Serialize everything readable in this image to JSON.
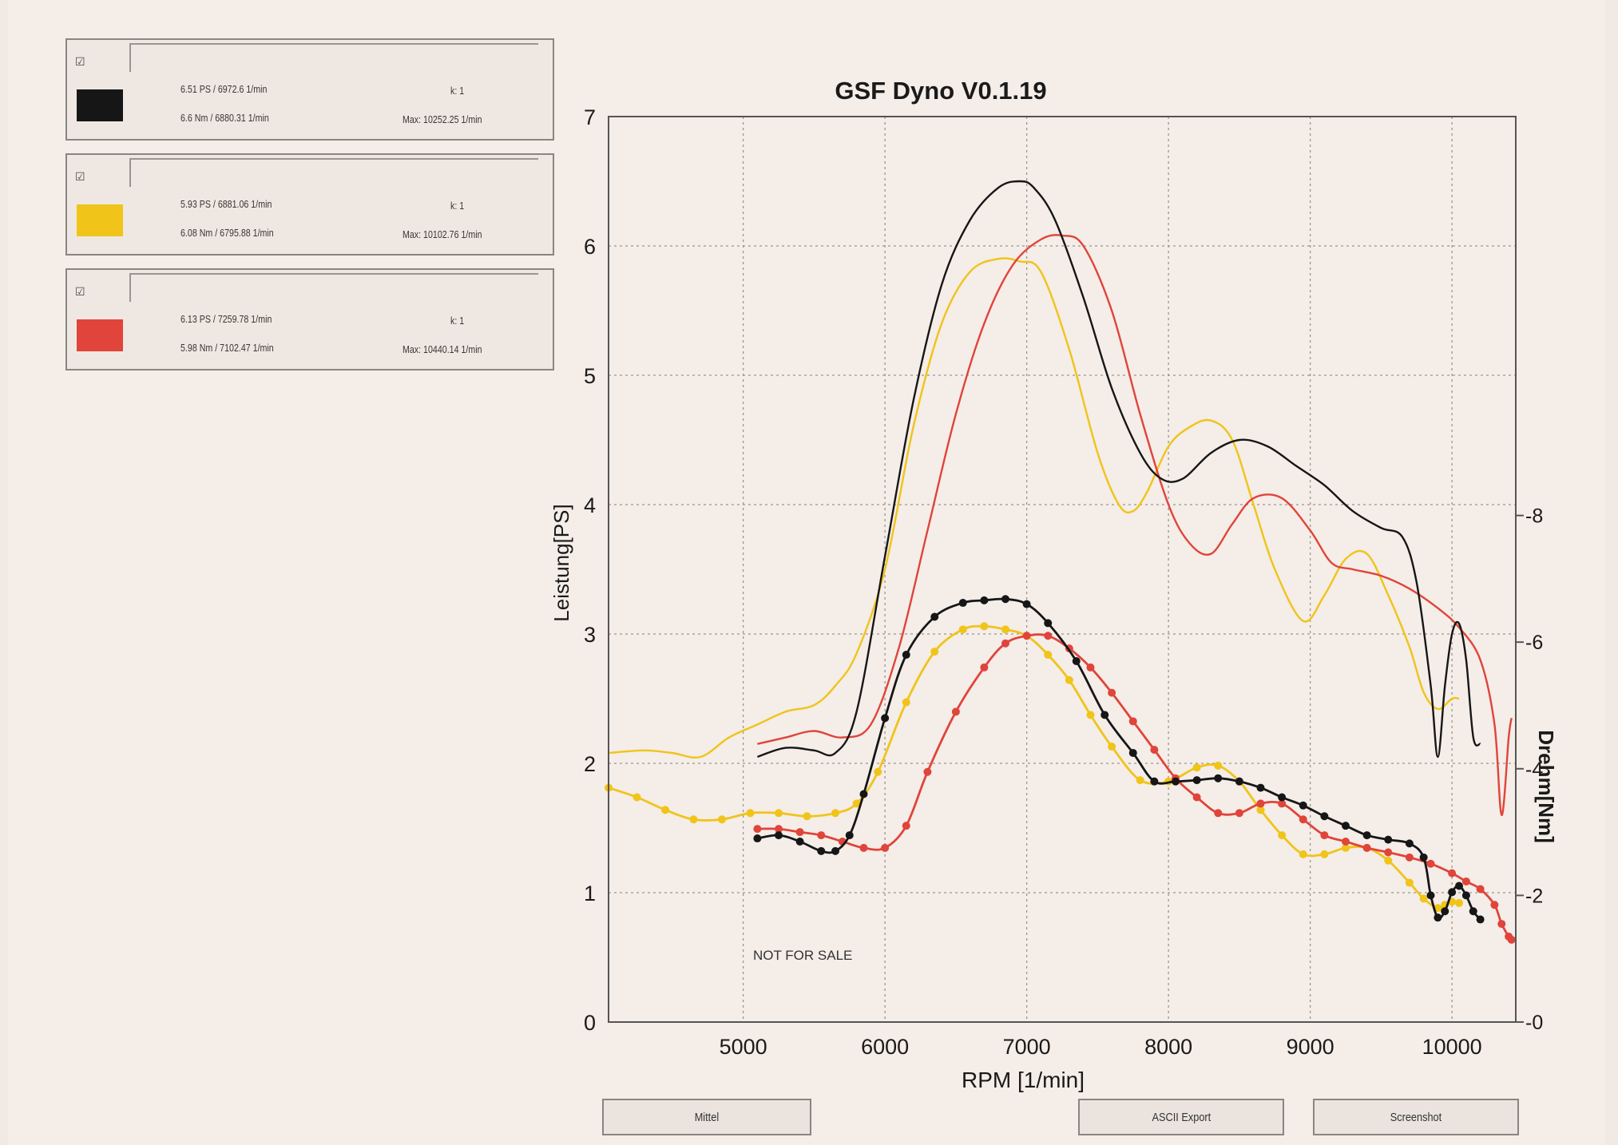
{
  "legend": [
    {
      "color": "#161616",
      "ps": "6.51 PS / 6972.6 1/min",
      "nm": "6.6 Nm / 6880.31 1/min",
      "k": "k: 1",
      "max": "Max: 10252.25 1/min"
    },
    {
      "color": "#f0c419",
      "ps": "5.93 PS / 6881.06 1/min",
      "nm": "6.08 Nm / 6795.88 1/min",
      "k": "k: 1",
      "max": "Max: 10102.76 1/min"
    },
    {
      "color": "#e0443a",
      "ps": "6.13 PS / 7259.78 1/min",
      "nm": "5.98 Nm / 7102.47 1/min",
      "k": "k: 1",
      "max": "Max: 10440.14 1/min"
    }
  ],
  "buttons": {
    "mittel": "Mittel",
    "ascii": "ASCII Export",
    "screenshot": "Screenshot"
  },
  "chart_data": {
    "type": "line",
    "title": "GSF Dyno V0.1.19",
    "xlabel": "RPM [1/min]",
    "ylabel": "Leistung[PS]",
    "y2label": "Drehm[Nm]",
    "annotation": "NOT FOR SALE",
    "xlim": [
      4050,
      10450
    ],
    "ylim": [
      0,
      7
    ],
    "y2lim": [
      0,
      14.3
    ],
    "xticks": [
      5000,
      6000,
      7000,
      8000,
      9000,
      10000
    ],
    "yticks": [
      0,
      1,
      2,
      3,
      4,
      5,
      6,
      7
    ],
    "y2ticks": [
      0,
      2,
      4,
      6,
      8
    ],
    "grid": true,
    "series": [
      {
        "color": "#161616",
        "axis": "power",
        "x": [
          5100,
          5300,
          5500,
          5650,
          5800,
          6000,
          6200,
          6400,
          6600,
          6800,
          6950,
          7050,
          7200,
          7400,
          7600,
          7800,
          7950,
          8100,
          8300,
          8500,
          8700,
          8900,
          9100,
          9300,
          9500,
          9650,
          9750,
          9850,
          9900,
          9950,
          10000,
          10050,
          10100,
          10150,
          10200
        ],
        "y": [
          2.05,
          2.12,
          2.1,
          2.08,
          2.4,
          3.6,
          4.8,
          5.7,
          6.2,
          6.45,
          6.5,
          6.45,
          6.2,
          5.6,
          4.9,
          4.4,
          4.2,
          4.2,
          4.4,
          4.5,
          4.45,
          4.3,
          4.15,
          3.95,
          3.82,
          3.75,
          3.4,
          2.6,
          2.05,
          2.6,
          3.0,
          3.08,
          2.8,
          2.2,
          2.15
        ]
      },
      {
        "color": "#f0c419",
        "axis": "power",
        "x": [
          4050,
          4300,
          4500,
          4700,
          4900,
          5100,
          5300,
          5500,
          5650,
          5800,
          6000,
          6200,
          6400,
          6600,
          6800,
          6950,
          7100,
          7300,
          7500,
          7650,
          7750,
          7850,
          8000,
          8150,
          8300,
          8450,
          8600,
          8750,
          8950,
          9100,
          9250,
          9400,
          9550,
          9700,
          9800,
          9900,
          10000,
          10050
        ],
        "y": [
          2.08,
          2.1,
          2.08,
          2.05,
          2.2,
          2.3,
          2.4,
          2.45,
          2.6,
          2.85,
          3.5,
          4.6,
          5.4,
          5.8,
          5.9,
          5.88,
          5.8,
          5.2,
          4.4,
          4.0,
          3.95,
          4.1,
          4.45,
          4.6,
          4.65,
          4.5,
          4.0,
          3.5,
          3.1,
          3.3,
          3.58,
          3.62,
          3.3,
          2.9,
          2.55,
          2.42,
          2.5,
          2.5
        ]
      },
      {
        "color": "#e0443a",
        "axis": "power",
        "x": [
          5100,
          5300,
          5500,
          5700,
          5900,
          6100,
          6300,
          6500,
          6700,
          6900,
          7100,
          7250,
          7400,
          7600,
          7800,
          8000,
          8150,
          8300,
          8450,
          8600,
          8800,
          9000,
          9150,
          9300,
          9500,
          9700,
          9900,
          10050,
          10200,
          10300,
          10350,
          10400,
          10420
        ],
        "y": [
          2.15,
          2.2,
          2.25,
          2.2,
          2.3,
          2.9,
          3.8,
          4.7,
          5.4,
          5.85,
          6.05,
          6.08,
          6.0,
          5.5,
          4.7,
          4.0,
          3.7,
          3.62,
          3.85,
          4.05,
          4.05,
          3.8,
          3.55,
          3.5,
          3.45,
          3.35,
          3.2,
          3.05,
          2.8,
          2.3,
          1.6,
          2.2,
          2.35
        ]
      },
      {
        "color": "#161616",
        "axis": "torque",
        "markers": true,
        "x": [
          5100,
          5250,
          5400,
          5550,
          5650,
          5750,
          5850,
          6000,
          6150,
          6350,
          6550,
          6700,
          6850,
          7000,
          7150,
          7350,
          7550,
          7750,
          7900,
          8050,
          8200,
          8350,
          8500,
          8650,
          8800,
          8950,
          9100,
          9250,
          9400,
          9550,
          9700,
          9800,
          9850,
          9900,
          9950,
          10000,
          10050,
          10100,
          10150,
          10200
        ],
        "y": [
          2.9,
          2.95,
          2.85,
          2.7,
          2.7,
          2.95,
          3.6,
          4.8,
          5.8,
          6.4,
          6.62,
          6.66,
          6.68,
          6.6,
          6.3,
          5.7,
          4.85,
          4.25,
          3.8,
          3.8,
          3.82,
          3.85,
          3.8,
          3.7,
          3.55,
          3.42,
          3.25,
          3.1,
          2.95,
          2.88,
          2.82,
          2.6,
          2.0,
          1.65,
          1.75,
          2.05,
          2.15,
          2.0,
          1.75,
          1.62
        ]
      },
      {
        "color": "#f0c419",
        "axis": "torque",
        "markers": true,
        "x": [
          4050,
          4250,
          4450,
          4650,
          4850,
          5050,
          5250,
          5450,
          5650,
          5800,
          5950,
          6150,
          6350,
          6550,
          6700,
          6850,
          7000,
          7150,
          7300,
          7450,
          7600,
          7800,
          8000,
          8200,
          8350,
          8500,
          8650,
          8800,
          8950,
          9100,
          9250,
          9400,
          9550,
          9700,
          9800,
          9900,
          9950,
          10000,
          10050
        ],
        "y": [
          3.7,
          3.55,
          3.35,
          3.2,
          3.2,
          3.3,
          3.3,
          3.25,
          3.3,
          3.45,
          3.95,
          5.05,
          5.85,
          6.2,
          6.25,
          6.2,
          6.1,
          5.8,
          5.4,
          4.85,
          4.35,
          3.82,
          3.8,
          4.02,
          4.05,
          3.8,
          3.35,
          2.95,
          2.65,
          2.65,
          2.75,
          2.75,
          2.55,
          2.2,
          1.95,
          1.8,
          1.85,
          1.9,
          1.88
        ]
      },
      {
        "color": "#e0443a",
        "axis": "torque",
        "markers": true,
        "x": [
          5100,
          5250,
          5400,
          5550,
          5700,
          5850,
          6000,
          6150,
          6300,
          6500,
          6700,
          6850,
          7000,
          7150,
          7300,
          7450,
          7600,
          7750,
          7900,
          8050,
          8200,
          8350,
          8500,
          8650,
          8800,
          8950,
          9100,
          9250,
          9400,
          9550,
          9700,
          9850,
          10000,
          10100,
          10200,
          10300,
          10350,
          10400,
          10420
        ],
        "y": [
          3.05,
          3.05,
          3.0,
          2.95,
          2.85,
          2.75,
          2.75,
          3.1,
          3.95,
          4.9,
          5.6,
          5.98,
          6.1,
          6.1,
          5.9,
          5.6,
          5.2,
          4.75,
          4.3,
          3.85,
          3.55,
          3.3,
          3.3,
          3.45,
          3.45,
          3.2,
          2.95,
          2.85,
          2.75,
          2.68,
          2.6,
          2.5,
          2.35,
          2.22,
          2.1,
          1.85,
          1.55,
          1.35,
          1.3
        ]
      }
    ]
  }
}
